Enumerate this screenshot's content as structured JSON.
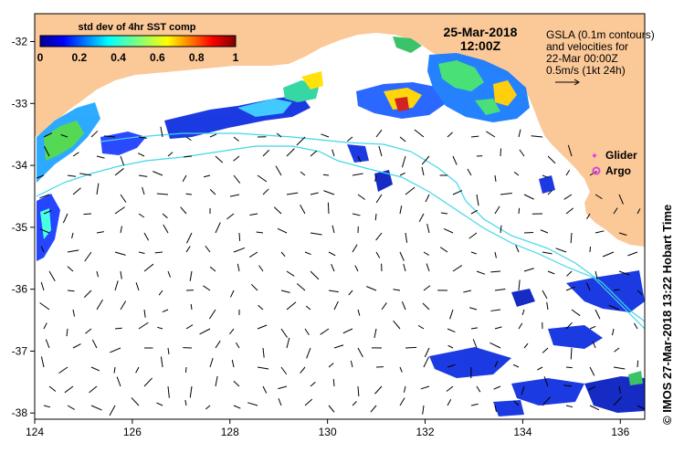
{
  "colorbar": {
    "title": "std dev of 4hr SST comp",
    "ticks": [
      "0",
      "0.2",
      "0.4",
      "0.6",
      "0.8",
      "1"
    ]
  },
  "date": "25-Mar-2018",
  "time": "12:00Z",
  "gsla_note": {
    "line1": "GSLA (0.1m contours)",
    "line2": "and velocities for",
    "line3": "22-Mar 00:00Z",
    "line4": "0.5m/s (1kt 24h)"
  },
  "legend": {
    "glider": "Glider",
    "argo": "Argo",
    "glider_color": "#e040e0",
    "argo_color": "#e040e0"
  },
  "credit": "© IMOS 27-Mar-2018 13:22 Hobart Time",
  "axes": {
    "x_ticks": [
      "124",
      "126",
      "128",
      "130",
      "132",
      "134",
      "136"
    ],
    "y_ticks": [
      "-32",
      "-33",
      "-34",
      "-35",
      "-36",
      "-37",
      "-38"
    ]
  },
  "colors": {
    "land": "#fbc898",
    "contour": "#3fd8e8",
    "ocean": "#ffffff"
  }
}
